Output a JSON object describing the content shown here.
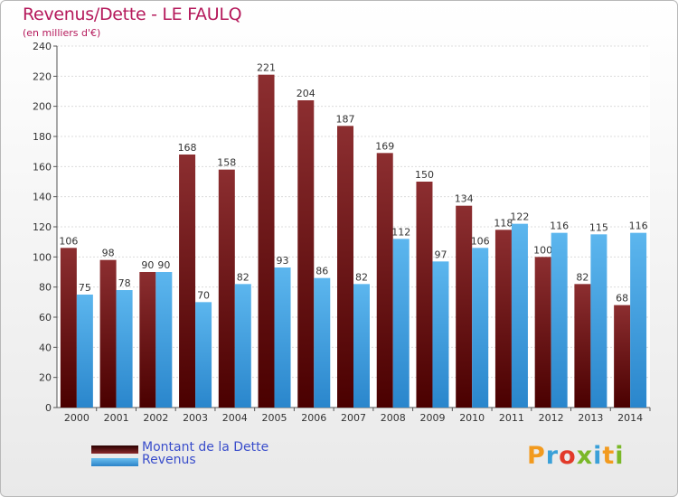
{
  "chart_data": {
    "type": "bar",
    "title": "Revenus/Dette - LE FAULQ",
    "subtitle": "(en milliers d'€)",
    "xlabel": "",
    "ylabel": "",
    "ylim": [
      0,
      240
    ],
    "yticks": [
      0,
      20,
      40,
      60,
      80,
      100,
      120,
      140,
      160,
      180,
      200,
      220,
      240
    ],
    "grid": true,
    "legend_position": "bottom-left",
    "categories": [
      "2000",
      "2001",
      "2002",
      "2003",
      "2004",
      "2005",
      "2006",
      "2007",
      "2008",
      "2009",
      "2010",
      "2011",
      "2012",
      "2013",
      "2014"
    ],
    "series": [
      {
        "name": "Montant de la Dette",
        "color": "#7b1c1e",
        "values": [
          106,
          98,
          90,
          168,
          158,
          221,
          204,
          187,
          169,
          150,
          134,
          118,
          100,
          82,
          68
        ]
      },
      {
        "name": "Revenus",
        "color": "#3a9ee0",
        "values": [
          75,
          78,
          90,
          70,
          82,
          93,
          86,
          82,
          112,
          97,
          106,
          122,
          116,
          115,
          116
        ]
      }
    ]
  },
  "logo": {
    "text": "Proxiti",
    "colors": [
      "#f29a1e",
      "#3aa0d8",
      "#e23a2a",
      "#7ab828",
      "#3aa0d8",
      "#f29a1e",
      "#7ab828"
    ]
  }
}
